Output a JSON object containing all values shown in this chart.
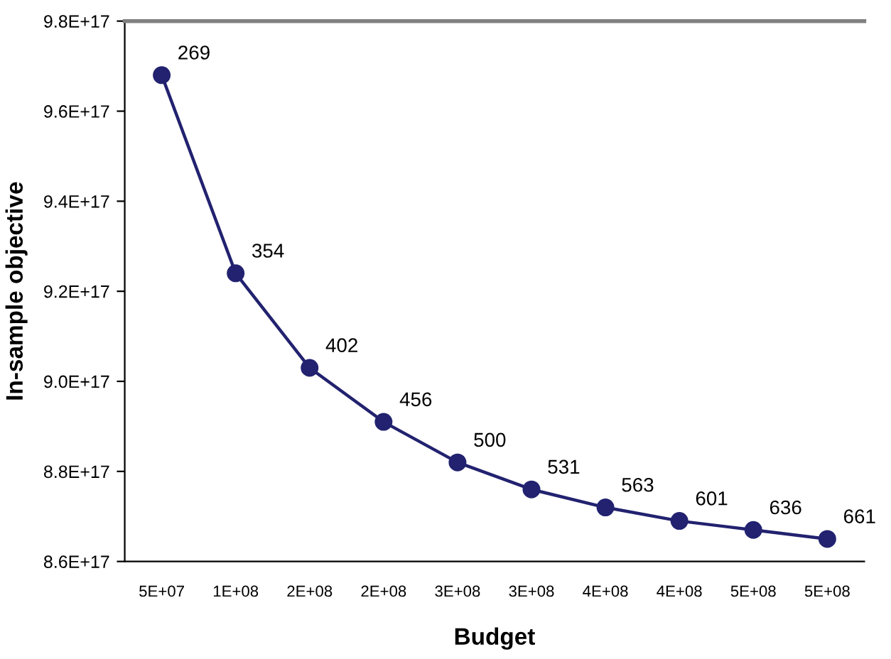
{
  "chart_data": {
    "type": "line",
    "xlabel": "Budget",
    "ylabel": "In-sample objective",
    "x": [
      50000000,
      100000000,
      150000000,
      200000000,
      250000000,
      300000000,
      350000000,
      400000000,
      450000000,
      500000000
    ],
    "series": [
      {
        "color": "#222270",
        "values": [
          9.68e+17,
          9.24e+17,
          9.03e+17,
          8.91e+17,
          8.82e+17,
          8.76e+17,
          8.72e+17,
          8.69e+17,
          8.67e+17,
          8.65e+17
        ]
      }
    ],
    "xlim": [
      25000000,
      525000000
    ],
    "xticks": [
      {
        "value": 50000000,
        "label": "5E+07"
      },
      {
        "value": 100000000,
        "label": "1E+08"
      },
      {
        "value": 150000000,
        "label": "2E+08"
      },
      {
        "value": 200000000,
        "label": "2E+08"
      },
      {
        "value": 250000000,
        "label": "3E+08"
      },
      {
        "value": 300000000,
        "label": "3E+08"
      },
      {
        "value": 350000000,
        "label": "4E+08"
      },
      {
        "value": 400000000,
        "label": "4E+08"
      },
      {
        "value": 450000000,
        "label": "5E+08"
      },
      {
        "value": 500000000,
        "label": "5E+08"
      }
    ],
    "ylim": [
      8.6e+17,
      9.8e+17
    ],
    "yticks": [
      {
        "value": 8.6e+17,
        "label": "8.6E+17"
      },
      {
        "value": 8.8e+17,
        "label": "8.8E+17"
      },
      {
        "value": 9e+17,
        "label": "9.0E+17"
      },
      {
        "value": 9.2e+17,
        "label": "9.2E+17"
      },
      {
        "value": 9.4e+17,
        "label": "9.4E+17"
      },
      {
        "value": 9.6e+17,
        "label": "9.6E+17"
      },
      {
        "value": 9.8e+17,
        "label": "9.8E+17"
      }
    ],
    "annotations": [
      {
        "text": "269",
        "x": 50000000,
        "y": 9.68e+17
      },
      {
        "text": "354",
        "x": 100000000,
        "y": 9.24e+17
      },
      {
        "text": "402",
        "x": 150000000,
        "y": 9.03e+17
      },
      {
        "text": "456",
        "x": 200000000,
        "y": 8.91e+17
      },
      {
        "text": "500",
        "x": 250000000,
        "y": 8.82e+17
      },
      {
        "text": "531",
        "x": 300000000,
        "y": 8.76e+17
      },
      {
        "text": "563",
        "x": 350000000,
        "y": 8.72e+17
      },
      {
        "text": "601",
        "x": 400000000,
        "y": 8.69e+17
      },
      {
        "text": "636",
        "x": 450000000,
        "y": 8.67e+17
      },
      {
        "text": "661",
        "x": 500000000,
        "y": 8.65e+17
      }
    ],
    "grid": false,
    "legend": false,
    "marker": "circle",
    "line_style": "solid"
  }
}
